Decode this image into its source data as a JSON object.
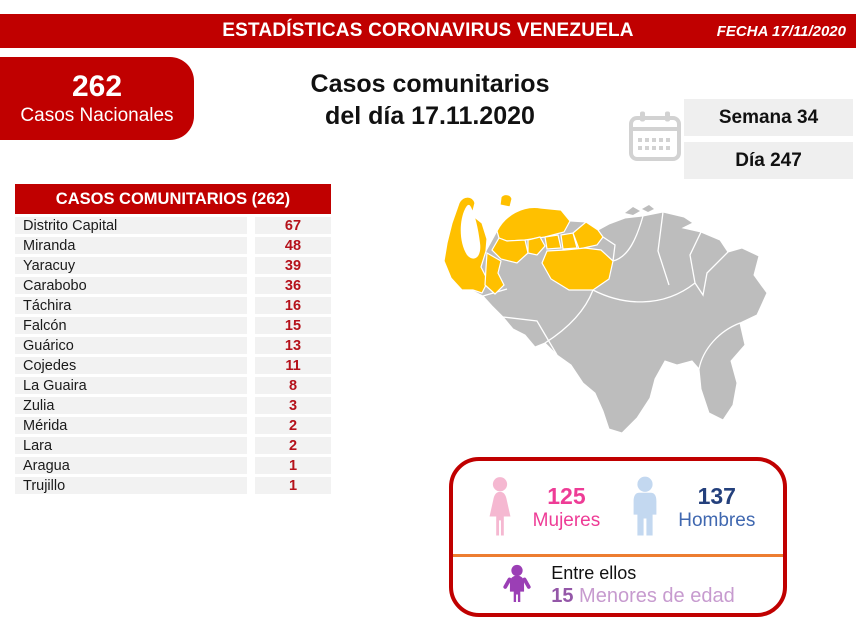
{
  "banner": {
    "title": "ESTADÍSTICAS CORONAVIRUS VENEZUELA",
    "date_label": "FECHA 17/11/2020"
  },
  "national": {
    "count": "262",
    "label": "Casos Nacionales"
  },
  "main_title": {
    "line1": "Casos comunitarios",
    "line2": "del día 17.11.2020"
  },
  "period": {
    "week": "Semana 34",
    "day": "Día 247"
  },
  "table": {
    "header": "CASOS COMUNITARIOS (262)",
    "rows": [
      {
        "state": "Distrito Capital",
        "cases": "67"
      },
      {
        "state": "Miranda",
        "cases": "48"
      },
      {
        "state": "Yaracuy",
        "cases": "39"
      },
      {
        "state": "Carabobo",
        "cases": "36"
      },
      {
        "state": "Táchira",
        "cases": "16"
      },
      {
        "state": "Falcón",
        "cases": "15"
      },
      {
        "state": "Guárico",
        "cases": "13"
      },
      {
        "state": "Cojedes",
        "cases": "11"
      },
      {
        "state": "La Guaira",
        "cases": "8"
      },
      {
        "state": "Zulia",
        "cases": "3"
      },
      {
        "state": "Mérida",
        "cases": "2"
      },
      {
        "state": "Lara",
        "cases": "2"
      },
      {
        "state": "Aragua",
        "cases": "1"
      },
      {
        "state": "Trujillo",
        "cases": "1"
      }
    ]
  },
  "demographics": {
    "women_count": "125",
    "women_label": "Mujeres",
    "men_count": "137",
    "men_label": "Hombres",
    "minors_intro": "Entre ellos",
    "minors_count": "15",
    "minors_label": " Menores de edad"
  },
  "colors": {
    "red": "#C00000",
    "number_red": "#B5121B",
    "table_row_bg": "#F2F2F2",
    "period_box_bg": "#EFEFEF",
    "map_base": "#BDBDBD",
    "map_hi": "#FFC000",
    "calendar_gray": "#D2D2D2",
    "women_text": "#EE3C96",
    "women_icon": "#F5B8D1",
    "men_icon": "#C3D8F0",
    "men_count_text": "#24407C",
    "men_label_text": "#4068B0",
    "divider_orange": "#ED7D31",
    "minors_icon": "#9B3FB5",
    "minors_count_text": "#9457A8",
    "minors_label_text": "#C79BCF"
  }
}
